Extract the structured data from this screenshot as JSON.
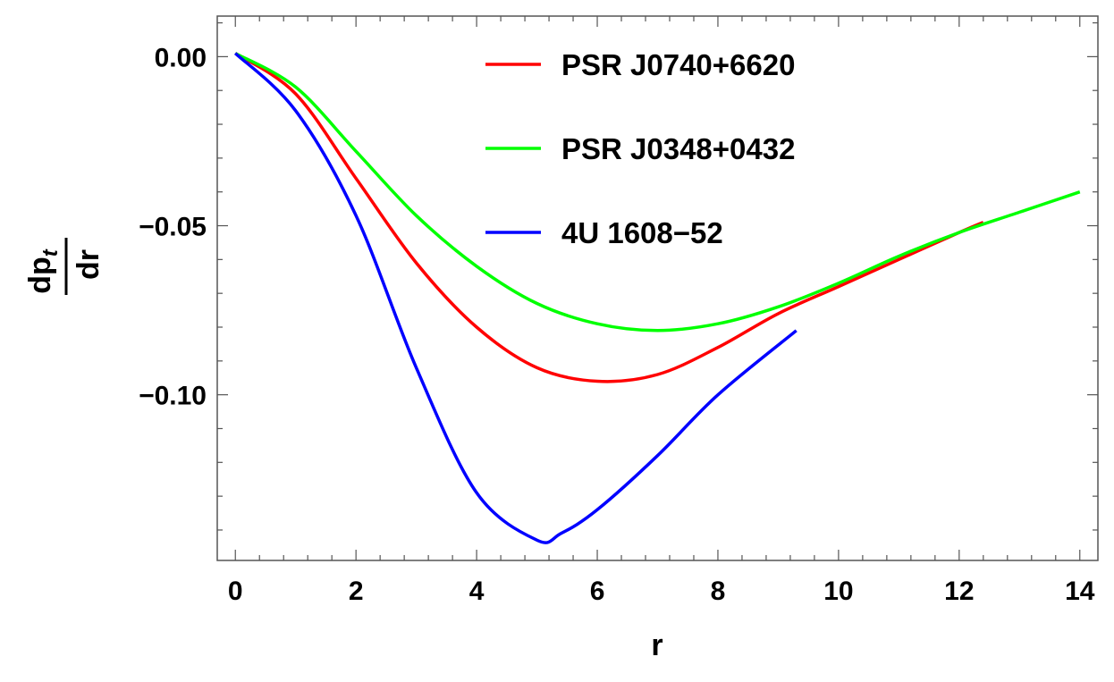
{
  "chart_data": {
    "type": "line",
    "title": "",
    "xlabel": "r",
    "ylabel": {
      "numerator": "dp",
      "numerator_sub": "t",
      "denominator": "dr"
    },
    "xlim": [
      -0.3,
      14.3
    ],
    "ylim": [
      -0.149,
      0.012
    ],
    "x_ticks": [
      0,
      2,
      4,
      6,
      8,
      10,
      12,
      14
    ],
    "x_tick_labels": [
      "0",
      "2",
      "4",
      "6",
      "8",
      "10",
      "12",
      "14"
    ],
    "y_ticks": [
      0.0,
      -0.05,
      -0.1
    ],
    "y_tick_labels": [
      "0.00",
      "−0.05",
      "−0.10"
    ],
    "grid": false,
    "legend_position": "top-center",
    "series": [
      {
        "name": "PSR J0740+6620",
        "color": "#ff0000",
        "points": [
          [
            0.0,
            0.001
          ],
          [
            1.0,
            -0.011
          ],
          [
            2.0,
            -0.036
          ],
          [
            3.0,
            -0.061
          ],
          [
            4.0,
            -0.08
          ],
          [
            5.0,
            -0.092
          ],
          [
            6.0,
            -0.096
          ],
          [
            7.0,
            -0.094
          ],
          [
            8.0,
            -0.086
          ],
          [
            9.0,
            -0.076
          ],
          [
            10.0,
            -0.068
          ],
          [
            11.0,
            -0.06
          ],
          [
            12.0,
            -0.052
          ],
          [
            12.4,
            -0.049
          ]
        ]
      },
      {
        "name": "PSR J0348+0432",
        "color": "#00ff00",
        "points": [
          [
            0.0,
            0.001
          ],
          [
            1.0,
            -0.009
          ],
          [
            2.0,
            -0.028
          ],
          [
            3.0,
            -0.047
          ],
          [
            4.0,
            -0.062
          ],
          [
            5.0,
            -0.073
          ],
          [
            6.0,
            -0.079
          ],
          [
            7.0,
            -0.081
          ],
          [
            8.0,
            -0.079
          ],
          [
            9.0,
            -0.074
          ],
          [
            10.0,
            -0.067
          ],
          [
            11.0,
            -0.059
          ],
          [
            12.0,
            -0.052
          ],
          [
            13.0,
            -0.046
          ],
          [
            14.0,
            -0.04
          ]
        ]
      },
      {
        "name": "4U 1608−52",
        "color": "#0000ff",
        "points": [
          [
            0.0,
            0.001
          ],
          [
            1.0,
            -0.016
          ],
          [
            2.0,
            -0.047
          ],
          [
            3.0,
            -0.092
          ],
          [
            4.0,
            -0.129
          ],
          [
            5.0,
            -0.143
          ],
          [
            5.4,
            -0.141
          ],
          [
            6.0,
            -0.134
          ],
          [
            7.0,
            -0.118
          ],
          [
            8.0,
            -0.1
          ],
          [
            9.3,
            -0.081
          ]
        ]
      }
    ]
  }
}
